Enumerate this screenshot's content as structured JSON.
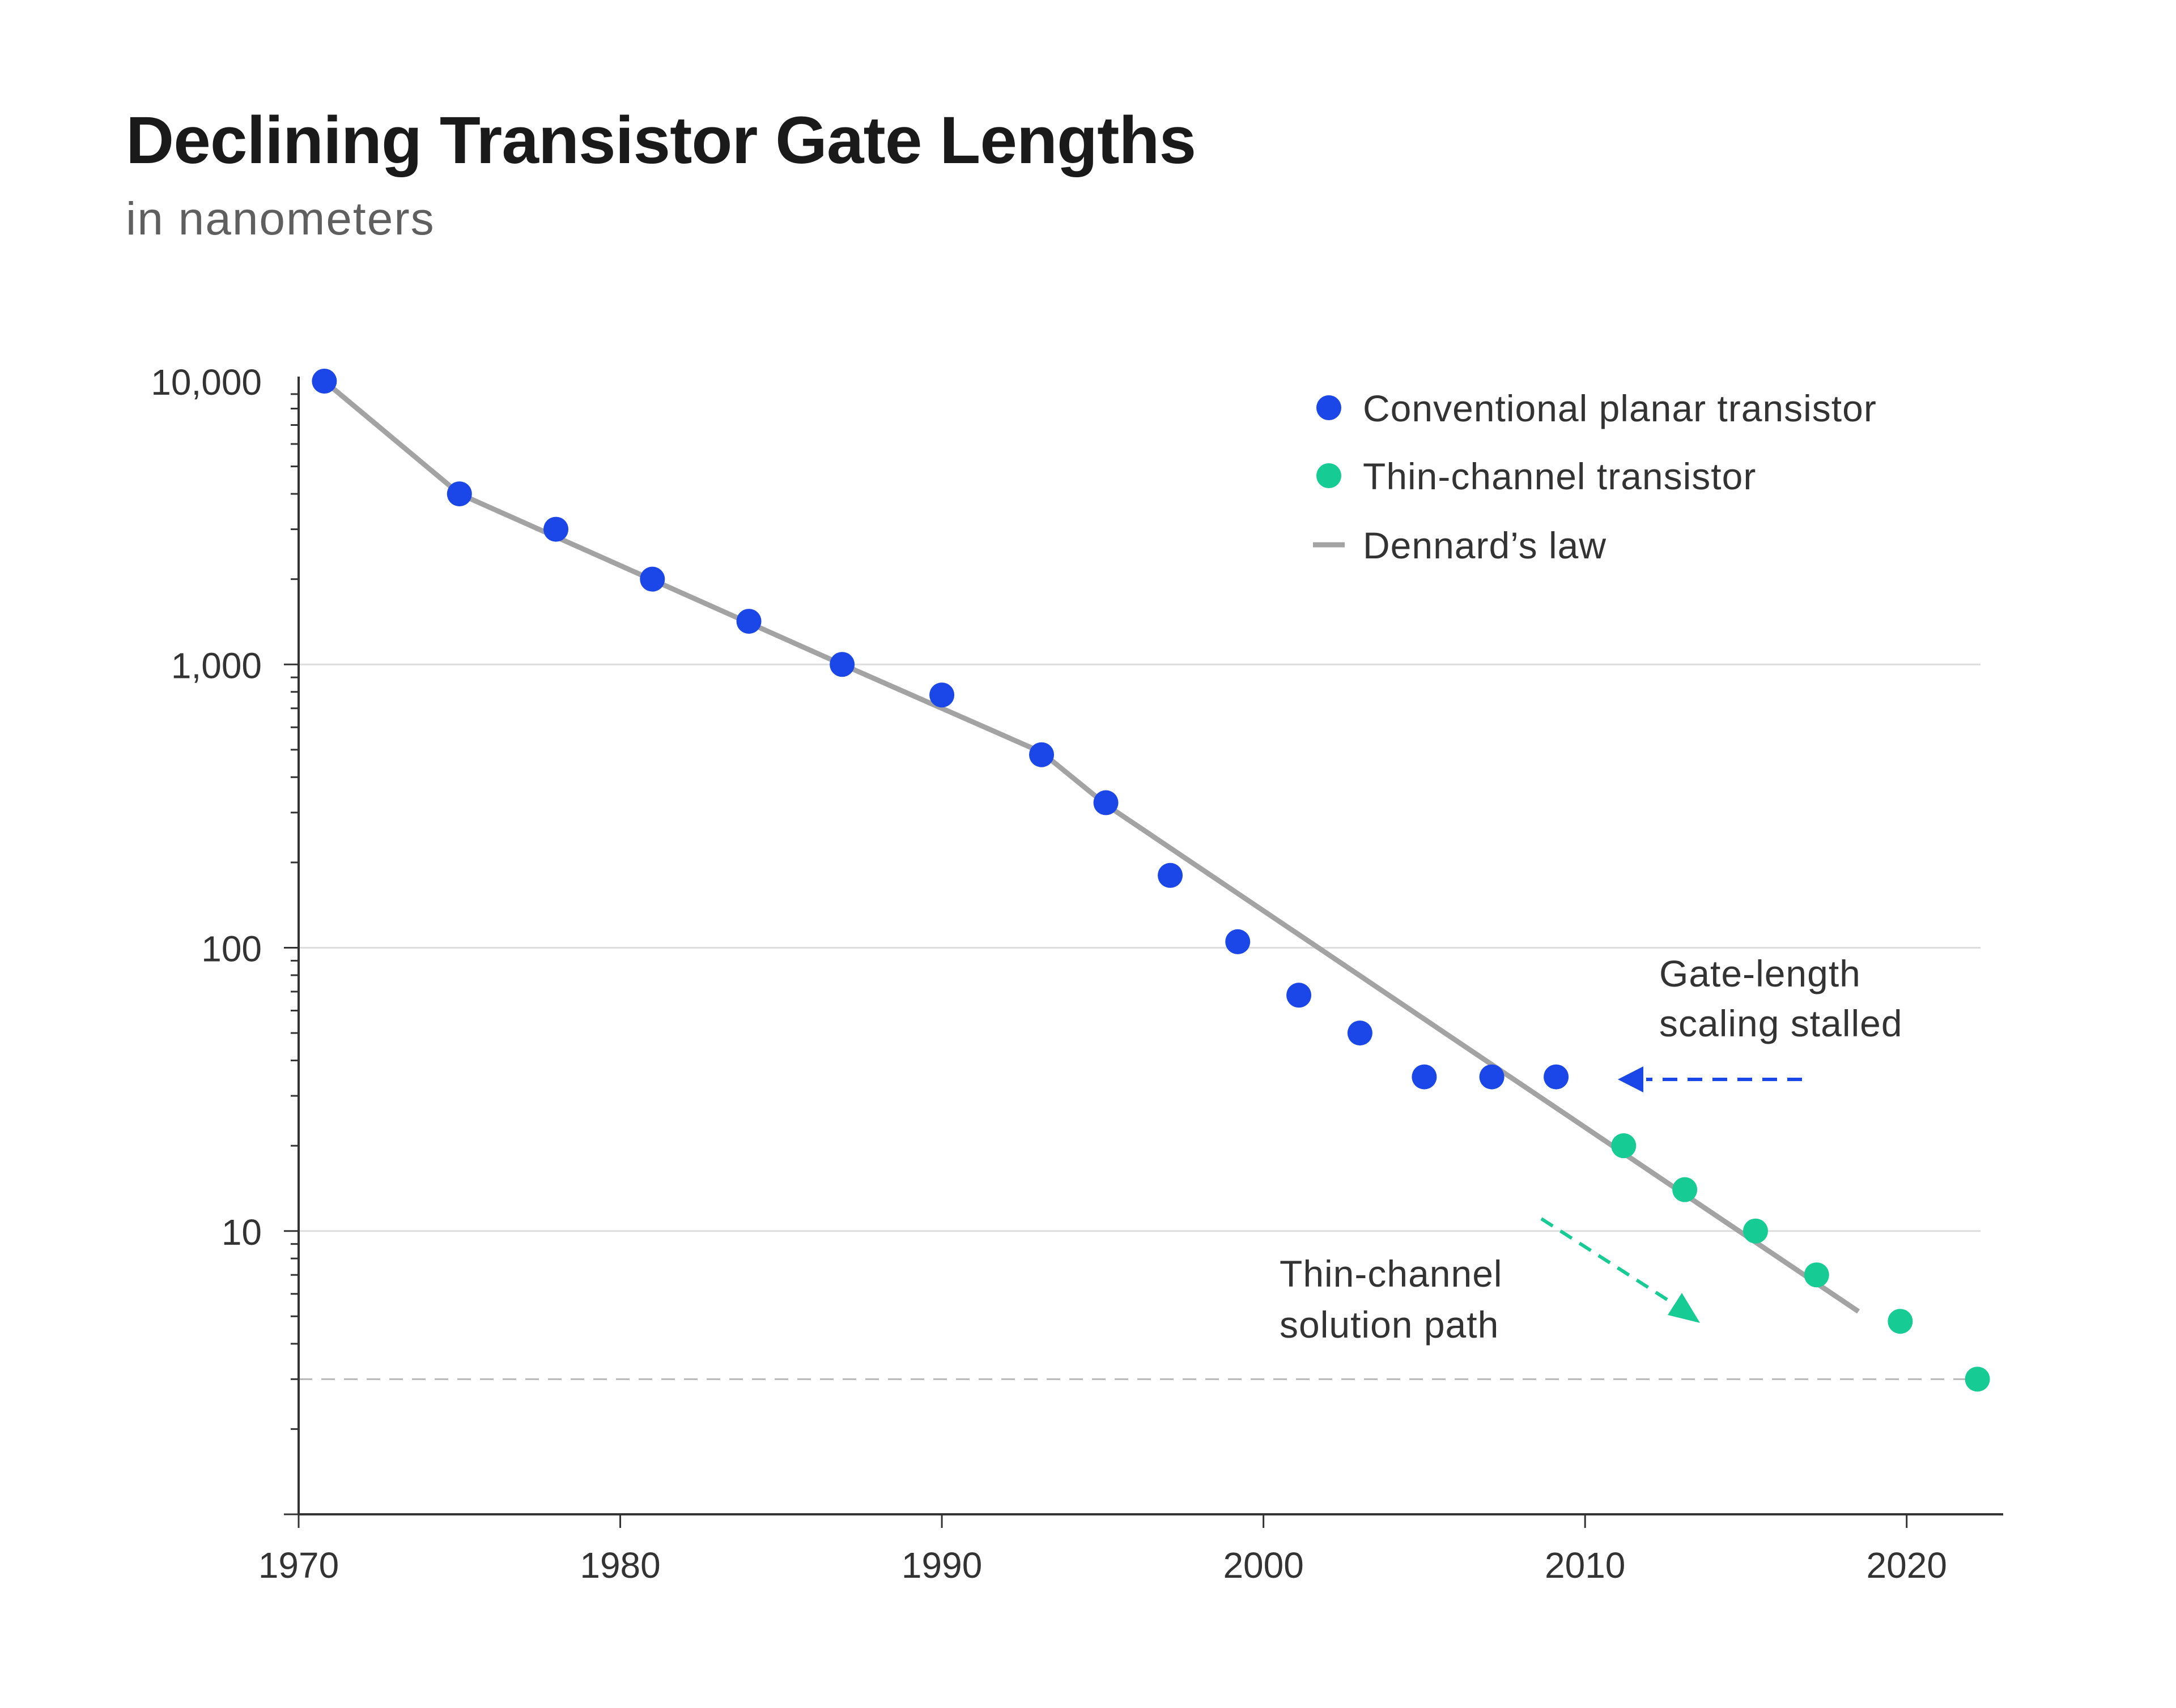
{
  "chart_data": {
    "type": "scatter",
    "title": "Declining Transistor Gate Lengths",
    "subtitle": "in nanometers",
    "xlabel": "",
    "ylabel": "",
    "y_scale": "log",
    "xlim": [
      1970,
      2023
    ],
    "ylim": [
      1,
      10000
    ],
    "x_ticks": [
      1970,
      1980,
      1990,
      2000,
      2010,
      2020
    ],
    "x_tick_labels": [
      "1970",
      "1980",
      "1990",
      "2000",
      "2010",
      "2020"
    ],
    "y_ticks": [
      10,
      100,
      1000,
      10000
    ],
    "y_tick_labels": [
      "10",
      "100",
      "1,000",
      "10,000"
    ],
    "grid": "horizontal at major y ticks",
    "reference_line_y": 3,
    "legend_position": "top-right",
    "legend": [
      {
        "label": "Conventional planar transistor",
        "marker": "dot",
        "color": "#1b46e8"
      },
      {
        "label": "Thin-channel transistor",
        "marker": "dot",
        "color": "#17cc94"
      },
      {
        "label": "Dennard’s law",
        "marker": "line",
        "color": "#a3a3a3"
      }
    ],
    "series": [
      {
        "name": "Conventional planar transistor",
        "color": "#1b46e8",
        "points": [
          {
            "x": 1970.8,
            "y": 10000
          },
          {
            "x": 1975,
            "y": 4000
          },
          {
            "x": 1978,
            "y": 3000
          },
          {
            "x": 1981,
            "y": 2000
          },
          {
            "x": 1984,
            "y": 1420
          },
          {
            "x": 1986.9,
            "y": 1000
          },
          {
            "x": 1990,
            "y": 780
          },
          {
            "x": 1993.1,
            "y": 480
          },
          {
            "x": 1995.1,
            "y": 325
          },
          {
            "x": 1997.1,
            "y": 180
          },
          {
            "x": 1999.2,
            "y": 105
          },
          {
            "x": 2001.1,
            "y": 68
          },
          {
            "x": 2003,
            "y": 50
          },
          {
            "x": 2005,
            "y": 35
          },
          {
            "x": 2007.1,
            "y": 35
          },
          {
            "x": 2009.1,
            "y": 35
          }
        ]
      },
      {
        "name": "Thin-channel transistor",
        "color": "#17cc94",
        "points": [
          {
            "x": 2011.2,
            "y": 20
          },
          {
            "x": 2013.1,
            "y": 14
          },
          {
            "x": 2015.3,
            "y": 10
          },
          {
            "x": 2017.2,
            "y": 7
          },
          {
            "x": 2019.8,
            "y": 4.8
          },
          {
            "x": 2022.2,
            "y": 3
          }
        ]
      },
      {
        "name": "Dennard’s law",
        "color": "#a3a3a3",
        "line": [
          {
            "x": 1970.8,
            "y": 10000
          },
          {
            "x": 1975,
            "y": 4000
          },
          {
            "x": 1986.9,
            "y": 1000
          },
          {
            "x": 1993.1,
            "y": 490
          },
          {
            "x": 1995.1,
            "y": 320
          },
          {
            "x": 2018.5,
            "y": 5.2
          }
        ]
      }
    ],
    "annotations": [
      {
        "id": "stalled",
        "lines": [
          "Gate-length",
          "scaling stalled"
        ],
        "arrow_color": "#1b46e8"
      },
      {
        "id": "thin",
        "lines": [
          "Thin-channel",
          "solution path"
        ],
        "arrow_color": "#17cc94"
      }
    ]
  }
}
